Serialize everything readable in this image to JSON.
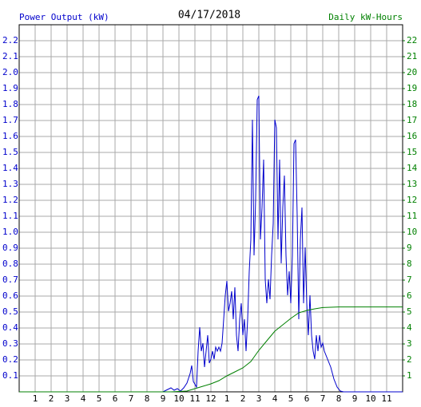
{
  "chart_data": {
    "type": "line",
    "title": "04/17/2018",
    "ylabel": "Power Output (kW)",
    "y2label": "Daily kW-Hours",
    "xlim": [
      0,
      24
    ],
    "xticks": [
      1,
      2,
      3,
      4,
      5,
      6,
      7,
      8,
      9,
      10,
      11,
      12,
      {
        "value": 13,
        "label": "1"
      },
      {
        "value": 14,
        "label": "2"
      },
      {
        "value": 15,
        "label": "3"
      },
      {
        "value": 16,
        "label": "4"
      },
      {
        "value": 17,
        "label": "5"
      },
      {
        "value": 18,
        "label": "6"
      },
      {
        "value": 19,
        "label": "7"
      },
      {
        "value": 20,
        "label": "8"
      },
      {
        "value": 21,
        "label": "9"
      },
      {
        "value": 22,
        "label": "10"
      },
      {
        "value": 23,
        "label": "11"
      }
    ],
    "ylim": [
      0,
      2.3
    ],
    "yticks": [
      0.1,
      0.2,
      0.3,
      0.4,
      0.5,
      0.6,
      0.7,
      0.8,
      0.9,
      {
        "value": 1,
        "label": "1.0"
      },
      1.1,
      1.2,
      1.3,
      1.4,
      1.5,
      1.6,
      1.7,
      1.8,
      1.9,
      {
        "value": 2,
        "label": "2.0"
      },
      2.1,
      2.2
    ],
    "y2lim": [
      0,
      23
    ],
    "y2ticks": [
      1,
      2,
      3,
      4,
      5,
      6,
      7,
      8,
      9,
      10,
      11,
      12,
      13,
      14,
      15,
      16,
      17,
      18,
      19,
      20,
      21,
      22
    ],
    "grid": true,
    "series": [
      {
        "name": "Power Output (kW)",
        "color": "#0000cc",
        "x": [
          0,
          9.0,
          9.3,
          9.5,
          9.7,
          9.9,
          10.1,
          10.3,
          10.5,
          10.7,
          10.8,
          10.9,
          11.1,
          11.2,
          11.3,
          11.4,
          11.5,
          11.6,
          11.7,
          11.8,
          11.9,
          12.0,
          12.1,
          12.2,
          12.3,
          12.4,
          12.5,
          12.6,
          12.7,
          12.8,
          12.9,
          13.0,
          13.1,
          13.2,
          13.3,
          13.4,
          13.5,
          13.6,
          13.7,
          13.8,
          13.9,
          14.0,
          14.1,
          14.2,
          14.3,
          14.4,
          14.5,
          14.6,
          14.7,
          14.8,
          14.9,
          15.0,
          15.1,
          15.2,
          15.3,
          15.4,
          15.5,
          15.6,
          15.7,
          15.8,
          15.9,
          16.0,
          16.1,
          16.2,
          16.3,
          16.4,
          16.5,
          16.6,
          16.7,
          16.8,
          16.9,
          17.0,
          17.1,
          17.2,
          17.3,
          17.4,
          17.5,
          17.6,
          17.7,
          17.8,
          17.9,
          18.0,
          18.1,
          18.2,
          18.3,
          18.4,
          18.5,
          18.6,
          18.7,
          18.8,
          18.9,
          19.0,
          19.1,
          19.3,
          19.5,
          19.7,
          19.9,
          20.1,
          20.3,
          24
        ],
        "values": [
          0,
          0,
          0.015,
          0.025,
          0.01,
          0.02,
          0.005,
          0.025,
          0.055,
          0.115,
          0.165,
          0.065,
          0.03,
          0.255,
          0.405,
          0.255,
          0.305,
          0.155,
          0.255,
          0.355,
          0.18,
          0.205,
          0.255,
          0.205,
          0.28,
          0.255,
          0.28,
          0.255,
          0.305,
          0.455,
          0.605,
          0.695,
          0.505,
          0.555,
          0.63,
          0.455,
          0.655,
          0.355,
          0.255,
          0.455,
          0.555,
          0.355,
          0.455,
          0.255,
          0.455,
          0.755,
          0.955,
          1.705,
          0.855,
          1.205,
          1.83,
          1.855,
          0.955,
          1.155,
          1.455,
          0.705,
          0.555,
          0.705,
          0.58,
          0.855,
          1.055,
          1.705,
          1.655,
          0.955,
          1.455,
          0.805,
          1.155,
          1.355,
          0.855,
          0.605,
          0.755,
          0.555,
          0.855,
          1.555,
          1.58,
          1.105,
          0.455,
          0.955,
          1.155,
          0.555,
          0.905,
          0.555,
          0.355,
          0.605,
          0.355,
          0.255,
          0.205,
          0.355,
          0.255,
          0.355,
          0.28,
          0.305,
          0.255,
          0.205,
          0.155,
          0.08,
          0.03,
          0.005,
          0,
          0
        ]
      },
      {
        "name": "Daily kW-Hours",
        "color": "#008000",
        "axis": "y2",
        "x": [
          0,
          9.5,
          10.5,
          11,
          11.5,
          12,
          12.5,
          13,
          13.5,
          14,
          14.5,
          15,
          15.5,
          16,
          16.5,
          17,
          17.5,
          18,
          18.5,
          19,
          19.5,
          20,
          24
        ],
        "values": [
          0,
          0,
          0.05,
          0.2,
          0.35,
          0.5,
          0.7,
          1.0,
          1.25,
          1.5,
          1.9,
          2.6,
          3.2,
          3.8,
          4.2,
          4.6,
          4.95,
          5.1,
          5.2,
          5.28,
          5.3,
          5.32,
          5.32
        ]
      }
    ]
  }
}
